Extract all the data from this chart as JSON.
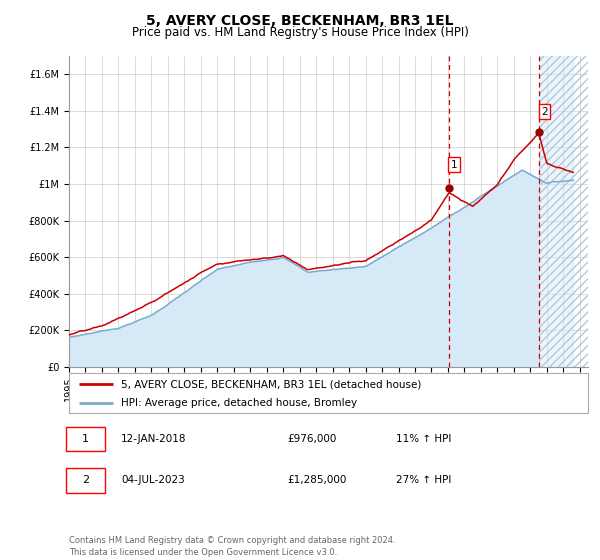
{
  "title": "5, AVERY CLOSE, BECKENHAM, BR3 1EL",
  "subtitle": "Price paid vs. HM Land Registry's House Price Index (HPI)",
  "ylim": [
    0,
    1700000
  ],
  "yticks": [
    0,
    200000,
    400000,
    600000,
    800000,
    1000000,
    1200000,
    1400000,
    1600000
  ],
  "ytick_labels": [
    "£0",
    "£200K",
    "£400K",
    "£600K",
    "£800K",
    "£1M",
    "£1.2M",
    "£1.4M",
    "£1.6M"
  ],
  "xlim_start": 1995.0,
  "xlim_end": 2026.5,
  "xticks": [
    1995,
    1996,
    1997,
    1998,
    1999,
    2000,
    2001,
    2002,
    2003,
    2004,
    2005,
    2006,
    2007,
    2008,
    2009,
    2010,
    2011,
    2012,
    2013,
    2014,
    2015,
    2016,
    2017,
    2018,
    2019,
    2020,
    2021,
    2022,
    2023,
    2024,
    2025,
    2026
  ],
  "red_line_color": "#cc0000",
  "blue_line_color": "#7aabcf",
  "blue_fill_color": "#d6e9f7",
  "hatch_color": "#b0c8dd",
  "marker_color": "#990000",
  "vline_color": "#cc0000",
  "sale1_x": 2018.04,
  "sale1_y": 976000,
  "sale2_x": 2023.51,
  "sale2_y": 1285000,
  "future_x": 2023.51,
  "legend_line1": "5, AVERY CLOSE, BECKENHAM, BR3 1EL (detached house)",
  "legend_line2": "HPI: Average price, detached house, Bromley",
  "table_row1": [
    "1",
    "12-JAN-2018",
    "£976,000",
    "11% ↑ HPI"
  ],
  "table_row2": [
    "2",
    "04-JUL-2023",
    "£1,285,000",
    "27% ↑ HPI"
  ],
  "footnote": "Contains HM Land Registry data © Crown copyright and database right 2024.\nThis data is licensed under the Open Government Licence v3.0.",
  "title_fontsize": 10,
  "subtitle_fontsize": 8.5,
  "tick_fontsize": 7,
  "legend_fontsize": 7.5,
  "table_fontsize": 8,
  "footnote_fontsize": 6,
  "bg_color": "#ffffff",
  "grid_color": "#cccccc"
}
